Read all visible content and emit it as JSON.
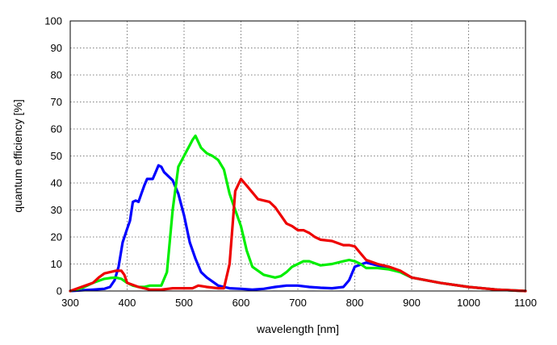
{
  "chart_data": {
    "type": "line",
    "title": "",
    "xlabel": "wavelength [nm]",
    "ylabel": "quantum efficiency [%]",
    "xlim": [
      300,
      1100
    ],
    "ylim": [
      0,
      100
    ],
    "x_ticks": [
      300,
      400,
      500,
      600,
      700,
      800,
      900,
      1000,
      1100
    ],
    "y_ticks": [
      0,
      10,
      20,
      30,
      40,
      50,
      60,
      70,
      80,
      90,
      100
    ],
    "grid": true,
    "legend": "none",
    "series": [
      {
        "color": "#0000ff",
        "x": [
          300,
          340,
          360,
          370,
          378,
          385,
          392,
          400,
          405,
          410,
          415,
          420,
          425,
          430,
          435,
          440,
          445,
          450,
          455,
          460,
          465,
          470,
          480,
          490,
          500,
          510,
          520,
          530,
          540,
          550,
          560,
          570,
          580,
          600,
          620,
          640,
          660,
          680,
          700,
          720,
          740,
          760,
          780,
          790,
          800,
          820,
          850,
          880,
          900,
          950,
          1000,
          1050,
          1100
        ],
        "y": [
          0,
          0.5,
          0.8,
          1.5,
          4,
          9,
          18,
          23,
          26,
          33,
          33.5,
          33,
          36,
          39,
          41.5,
          41.5,
          41.5,
          44,
          46.5,
          46,
          44,
          43,
          41,
          36,
          28,
          18,
          12,
          7,
          5,
          3.5,
          2,
          1.5,
          1,
          0.8,
          0.5,
          0.8,
          1.5,
          2,
          2,
          1.5,
          1.2,
          1,
          1.5,
          4,
          9,
          10.5,
          9,
          7,
          5,
          3,
          1.5,
          0.5,
          0
        ]
      },
      {
        "color": "#00ee00",
        "x": [
          300,
          320,
          340,
          360,
          370,
          380,
          390,
          400,
          410,
          420,
          430,
          440,
          450,
          460,
          470,
          480,
          490,
          500,
          505,
          510,
          515,
          520,
          530,
          540,
          550,
          560,
          570,
          580,
          590,
          600,
          610,
          620,
          640,
          660,
          670,
          680,
          690,
          700,
          710,
          720,
          740,
          760,
          780,
          790,
          800,
          810,
          820,
          840,
          860,
          880,
          900,
          950,
          1000,
          1050,
          1100
        ],
        "y": [
          0,
          1,
          3,
          4.5,
          4.8,
          5,
          4.5,
          3,
          2,
          1.5,
          1.5,
          2,
          2,
          2,
          7,
          30,
          46,
          50,
          52,
          54,
          56,
          57.5,
          53,
          51,
          50,
          48.5,
          45,
          36,
          30,
          24,
          15,
          9,
          6,
          5,
          5.5,
          7,
          9,
          10,
          11,
          11,
          9.5,
          10,
          11,
          11.5,
          11,
          10,
          8.5,
          8.5,
          8,
          7,
          5,
          3,
          1.5,
          0.5,
          0
        ]
      },
      {
        "color": "#ee0000",
        "x": [
          300,
          340,
          350,
          360,
          370,
          380,
          385,
          390,
          395,
          400,
          420,
          440,
          460,
          480,
          500,
          515,
          525,
          540,
          560,
          570,
          580,
          590,
          600,
          610,
          620,
          630,
          650,
          660,
          670,
          680,
          690,
          700,
          710,
          720,
          730,
          740,
          760,
          780,
          790,
          800,
          810,
          820,
          840,
          860,
          880,
          900,
          950,
          1000,
          1050,
          1100
        ],
        "y": [
          0,
          3,
          5,
          6.5,
          7,
          7.5,
          7.5,
          7.5,
          6,
          3,
          1.5,
          0.5,
          0.5,
          1,
          1,
          1,
          2,
          1.5,
          1,
          1,
          10,
          37,
          41.5,
          39,
          36.5,
          34,
          33,
          31,
          28,
          25,
          24,
          22.5,
          22.5,
          21.5,
          20,
          19,
          18.5,
          17,
          17,
          16.5,
          14,
          11.5,
          10,
          9,
          7.5,
          5,
          3,
          1.5,
          0.5,
          0
        ]
      }
    ]
  }
}
